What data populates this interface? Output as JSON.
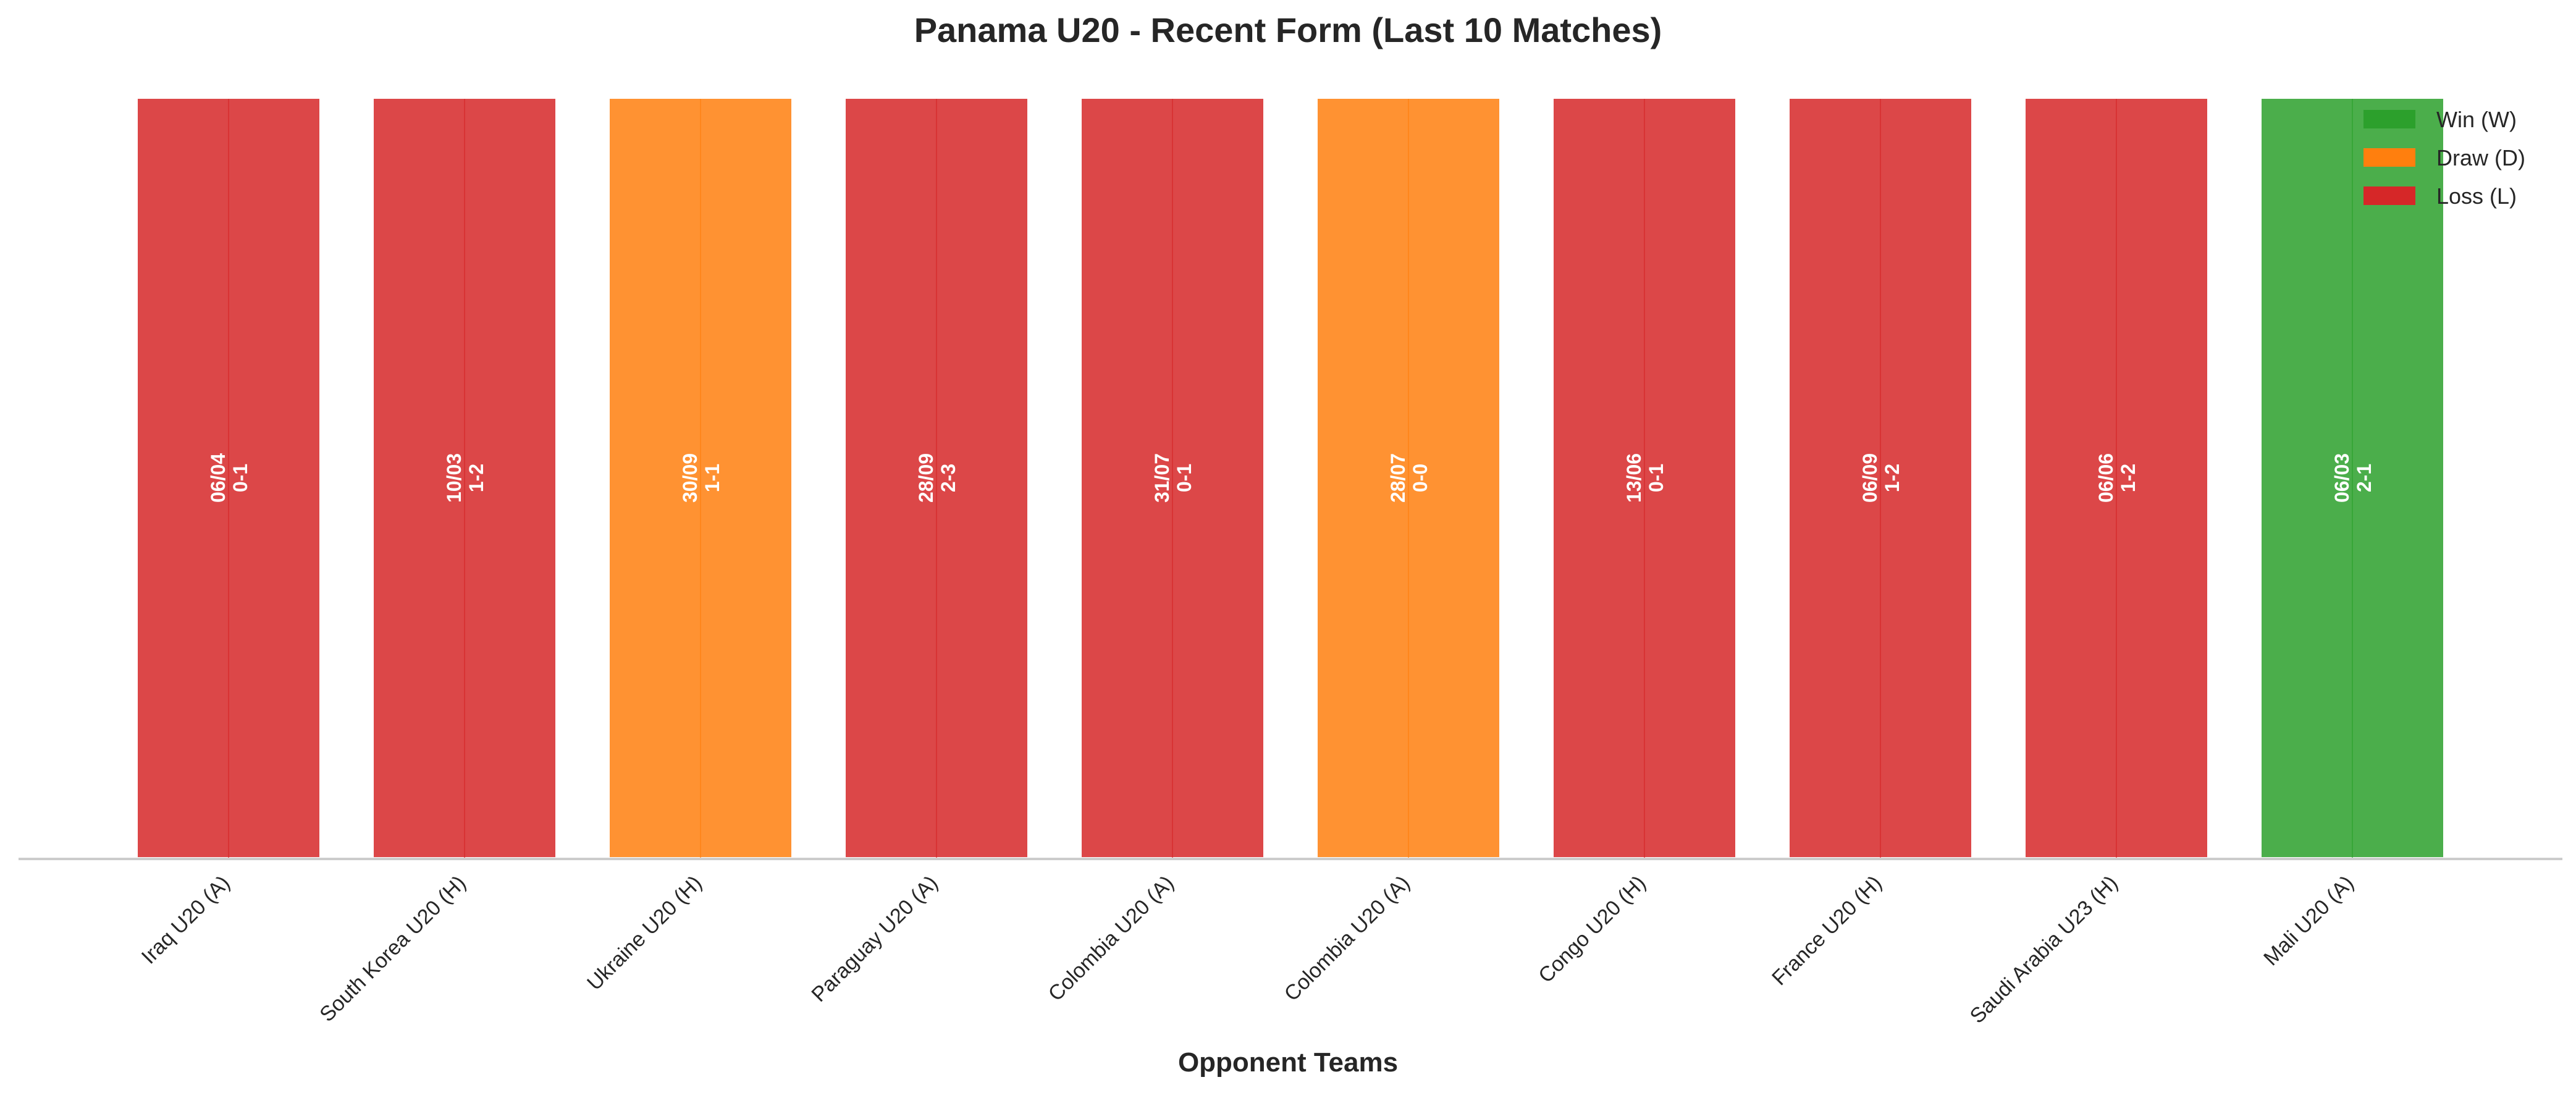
{
  "chart_data": {
    "type": "bar",
    "title": "Panama U20 - Recent Form (Last 10 Matches)",
    "xlabel": "Opponent Teams",
    "ylabel": "",
    "categories": [
      "Iraq U20 (A)",
      "South Korea U20 (H)",
      "Ukraine U20 (H)",
      "Paraguay U20 (A)",
      "Colombia U20 (A)",
      "Colombia U20 (A)",
      "Congo U20 (H)",
      "France U20 (H)",
      "Saudi Arabia U23 (H)",
      "Mali U20 (A)"
    ],
    "values": [
      1,
      1,
      1,
      1,
      1,
      1,
      1,
      1,
      1,
      1
    ],
    "results": [
      "L",
      "L",
      "D",
      "L",
      "L",
      "D",
      "L",
      "L",
      "L",
      "W"
    ],
    "dates": [
      "06/04",
      "10/03",
      "30/09",
      "28/09",
      "31/07",
      "28/07",
      "13/06",
      "06/09",
      "06/06",
      "06/03"
    ],
    "scores": [
      "0-1",
      "1-2",
      "1-1",
      "2-3",
      "0-1",
      "0-0",
      "0-1",
      "1-2",
      "1-2",
      "2-1"
    ],
    "ylim": [
      0,
      1
    ],
    "grid": false,
    "legend": {
      "placement": "top-right",
      "entries": [
        {
          "key": "W",
          "label": "Win (W)",
          "color": "#2ca02c"
        },
        {
          "key": "D",
          "label": "Draw (D)",
          "color": "#ff7f0e"
        },
        {
          "key": "L",
          "label": "Loss (L)",
          "color": "#d62728"
        }
      ]
    }
  }
}
